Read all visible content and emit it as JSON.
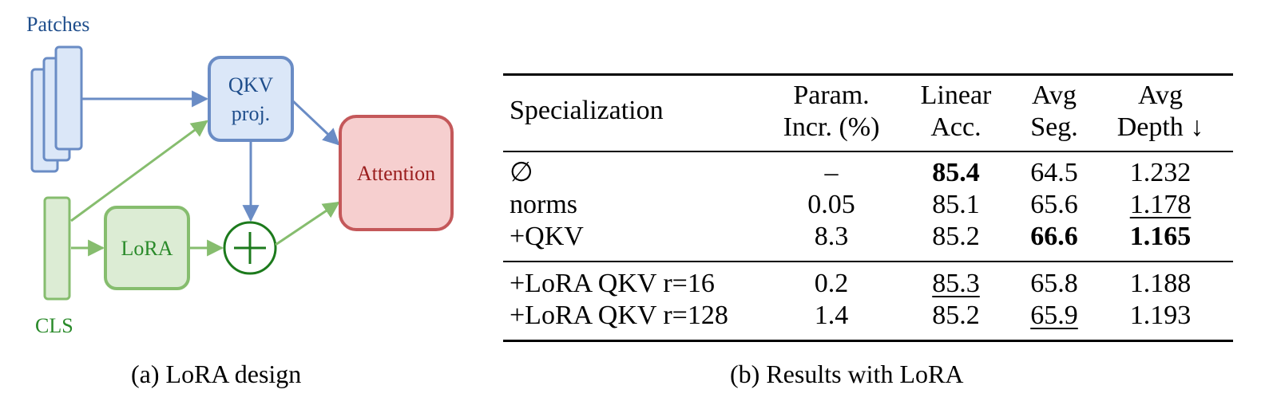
{
  "diagram": {
    "patches_label": "Patches",
    "cls_label": "CLS",
    "qkv_line1": "QKV",
    "qkv_line2": "proj.",
    "lora_label": "LoRA",
    "attention_label": "Attention",
    "plus_symbol": "+",
    "colors": {
      "blue_stroke": "#6a8cc5",
      "blue_fill": "#dbe7f8",
      "blue_text": "#1f4e8c",
      "green_stroke": "#86bd6e",
      "green_fill": "#dcecd4",
      "green_text": "#2a8a2a",
      "plus_color": "#1c7a1c",
      "red_stroke": "#c4585a",
      "red_fill": "#f6cfcf",
      "red_text": "#9a1d1d"
    }
  },
  "table": {
    "headers": [
      {
        "line1": "Specialization",
        "line2": ""
      },
      {
        "line1": "Param.",
        "line2": "Incr. (%)"
      },
      {
        "line1": "Linear",
        "line2": "Acc."
      },
      {
        "line1": "Avg",
        "line2": "Seg."
      },
      {
        "line1": "Avg",
        "line2": "Depth ↓"
      }
    ],
    "group1": [
      {
        "name": "∅",
        "param": "–",
        "acc": "85.4",
        "seg": "64.5",
        "depth": "1.232"
      },
      {
        "name": "norms",
        "param": "0.05",
        "acc": "85.1",
        "seg": "65.6",
        "depth": "1.178"
      },
      {
        "name": "+QKV",
        "param": "8.3",
        "acc": "85.2",
        "seg": "66.6",
        "depth": "1.165"
      }
    ],
    "group2": [
      {
        "name": "+LoRA QKV r=16",
        "param": "0.2",
        "acc": "85.3",
        "seg": "65.8",
        "depth": "1.188"
      },
      {
        "name": "+LoRA QKV r=128",
        "param": "1.4",
        "acc": "85.2",
        "seg": "65.9",
        "depth": "1.193"
      }
    ],
    "bold_cells": [
      "g1r0.acc",
      "g1r2.seg",
      "g1r2.depth"
    ],
    "underlined_cells": [
      "g1r1.depth",
      "g2r0.acc",
      "g2r1.seg"
    ]
  },
  "captions": {
    "left": "(a) LoRA design",
    "right": "(b) Results with LoRA"
  }
}
